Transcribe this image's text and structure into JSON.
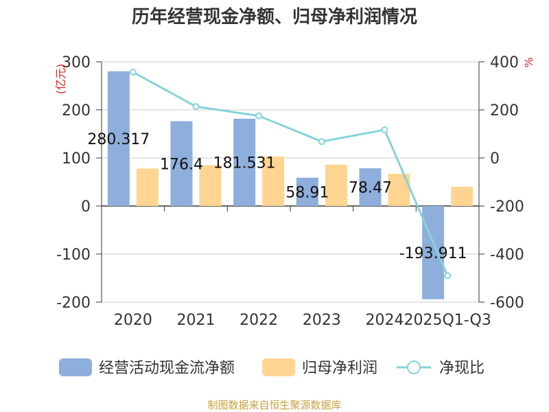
{
  "title": "历年经营现金净额、归母净利润情况",
  "source": "制图数据来自恒生聚源数据库",
  "chart_data": {
    "type": "bar",
    "title": "历年经营现金净额、归母净利润情况",
    "categories": [
      "2020",
      "2021",
      "2022",
      "2023",
      "2024",
      "2025Q1-Q3"
    ],
    "y_left": {
      "unit": "(亿元)",
      "range": [
        -200,
        300
      ],
      "ticks": [
        "300",
        "200",
        "100",
        "0",
        "-100",
        "-200"
      ]
    },
    "y_right": {
      "unit": "%",
      "range": [
        -600,
        400
      ],
      "ticks": [
        "400",
        "200",
        "0",
        "-200",
        "-400",
        "-600"
      ]
    },
    "series": [
      {
        "name": "经营活动现金流净额",
        "axis": "left",
        "type": "bar",
        "color": "#8eaedc",
        "values": [
          280.317,
          176.4,
          181.531,
          58.91,
          78.47,
          -193.911
        ],
        "labels": [
          "280.317",
          "176.4",
          "181.531",
          "58.91",
          "78.47",
          "-193.911"
        ]
      },
      {
        "name": "归母净利润",
        "axis": "left",
        "type": "bar",
        "color": "#ffd591",
        "values": [
          78,
          85,
          103,
          86,
          67,
          40
        ]
      },
      {
        "name": "净现比",
        "axis": "right",
        "type": "line",
        "color": "#86d3d8",
        "values": [
          357,
          214,
          175,
          68,
          117,
          -490
        ]
      }
    ],
    "grid": true,
    "legend_position": "bottom"
  }
}
